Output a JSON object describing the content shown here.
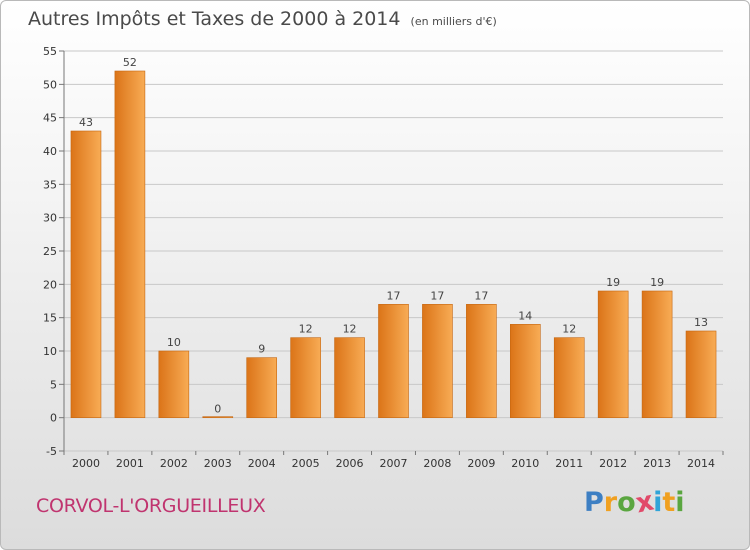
{
  "header": {
    "title": "Autres Impôts et Taxes de 2000 à 2014",
    "unit": "(en milliers d'€)"
  },
  "footer": {
    "commune": "CORVOL-L'ORGUEILLEUX",
    "logo_letters": [
      "P",
      "r",
      "o",
      "x",
      "i",
      "t",
      "i"
    ],
    "logo_colors": [
      "#3d7fc3",
      "#f0a020",
      "#5aa640",
      "#e14a6a",
      "#2fa4d8",
      "#f0a020",
      "#5aa640"
    ]
  },
  "colors": {
    "bar_light": "#f8ac55",
    "bar_dark": "#db7418",
    "bar_edge": "#c5660f",
    "grid": "#c8c8c8",
    "axis": "#777777"
  },
  "chart_data": {
    "type": "bar",
    "title": "Autres Impôts et Taxes de 2000 à 2014",
    "subtitle": "(en milliers d'€)",
    "xlabel": "",
    "ylabel": "",
    "categories": [
      "2000",
      "2001",
      "2002",
      "2003",
      "2004",
      "2005",
      "2006",
      "2007",
      "2008",
      "2009",
      "2010",
      "2011",
      "2012",
      "2013",
      "2014"
    ],
    "values": [
      43,
      52,
      10,
      0,
      9,
      12,
      12,
      17,
      17,
      17,
      14,
      12,
      19,
      19,
      13
    ],
    "ylim": [
      -5,
      55
    ],
    "yticks": [
      -5,
      0,
      5,
      10,
      15,
      20,
      25,
      30,
      35,
      40,
      45,
      50,
      55
    ],
    "grid": true,
    "legend": "none"
  }
}
